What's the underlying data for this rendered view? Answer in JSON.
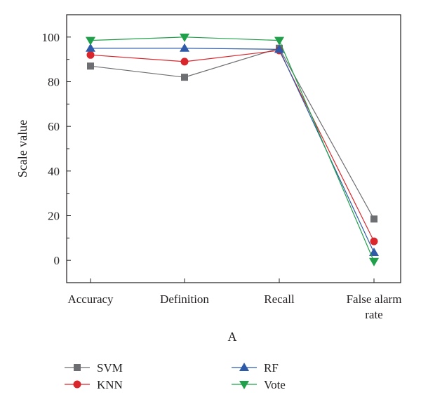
{
  "chart_data": {
    "type": "line",
    "categories": [
      [
        "Accuracy"
      ],
      [
        "Definition"
      ],
      [
        "Recall"
      ],
      [
        "False alarm",
        "rate"
      ]
    ],
    "xlabel": "A",
    "ylabel": "Scale value",
    "ylim": [
      -10,
      110
    ],
    "yticks": [
      0,
      20,
      40,
      60,
      80,
      100
    ],
    "grid": false,
    "legend": "bottom",
    "series": [
      {
        "name": "SVM",
        "values": [
          87,
          82,
          95,
          18.5
        ],
        "color": "#6d6e71",
        "marker": "square"
      },
      {
        "name": "KNN",
        "values": [
          92,
          89,
          94,
          8.5
        ],
        "color": "#d8262c",
        "marker": "circle"
      },
      {
        "name": "RF",
        "values": [
          95,
          95,
          94.5,
          3.5
        ],
        "color": "#2e5aa8",
        "marker": "triangle-up"
      },
      {
        "name": "Vote",
        "values": [
          98.5,
          100,
          98.5,
          -0.5
        ],
        "color": "#20a04b",
        "marker": "triangle-down"
      }
    ]
  }
}
